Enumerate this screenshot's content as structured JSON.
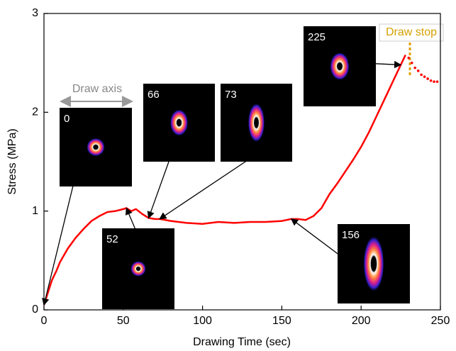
{
  "chart_data": {
    "type": "line",
    "xlabel": "Drawing Time (sec)",
    "ylabel": "Stress (MPa)",
    "xlim": [
      0,
      250
    ],
    "xticks": [
      0,
      50,
      100,
      150,
      200,
      250
    ],
    "ylim": [
      0,
      3
    ],
    "yticks": [
      0,
      1,
      2,
      3
    ],
    "series": [
      {
        "color": "#ff0000",
        "marker": false,
        "x": [
          0,
          2,
          5,
          8,
          10,
          15,
          20,
          25,
          30,
          35,
          40,
          45,
          50,
          52,
          55,
          58,
          62,
          66,
          70,
          73,
          80,
          90,
          100,
          110,
          120,
          130,
          140,
          150,
          156,
          160,
          165,
          170,
          175,
          180,
          185,
          190,
          195,
          200,
          205,
          210,
          215,
          220,
          225,
          228
        ],
        "values": [
          0.05,
          0.15,
          0.3,
          0.4,
          0.48,
          0.62,
          0.73,
          0.82,
          0.9,
          0.95,
          0.99,
          1.0,
          1.02,
          1.03,
          1.0,
          1.02,
          0.97,
          0.93,
          0.92,
          0.92,
          0.9,
          0.88,
          0.87,
          0.89,
          0.88,
          0.89,
          0.89,
          0.9,
          0.92,
          0.92,
          0.91,
          0.95,
          1.03,
          1.17,
          1.28,
          1.4,
          1.52,
          1.65,
          1.8,
          1.97,
          2.14,
          2.31,
          2.48,
          2.58
        ]
      },
      {
        "color": "#ff0000",
        "marker": true,
        "x": [
          230,
          232,
          234,
          236,
          238,
          240,
          242,
          244,
          246,
          248
        ],
        "values": [
          2.55,
          2.5,
          2.45,
          2.42,
          2.38,
          2.36,
          2.34,
          2.32,
          2.31,
          2.31
        ]
      }
    ],
    "annotations": {
      "draw_axis": "Draw axis",
      "draw_stop": "Draw stop"
    },
    "insets": [
      0,
      52,
      66,
      73,
      225,
      156
    ]
  }
}
